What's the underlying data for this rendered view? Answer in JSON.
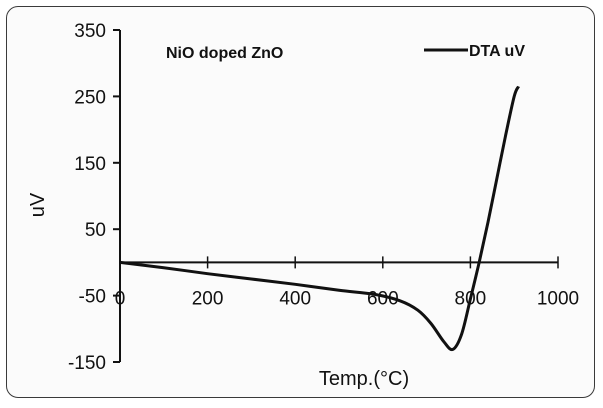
{
  "chart_data": {
    "type": "line",
    "xlabel": "Temp.(°C)",
    "ylabel": "uV",
    "xlim": [
      0,
      1000
    ],
    "ylim": [
      -150,
      350
    ],
    "xticks": [
      "0",
      "200",
      "400",
      "600",
      "800",
      "1000"
    ],
    "yticks": [
      "350",
      "250",
      "150",
      "50",
      "-50",
      "-150"
    ],
    "annotation": "NiO doped ZnO",
    "legend": {
      "position": "top-right"
    },
    "series": [
      {
        "name": "DTA uV",
        "color": "#111111",
        "x": [
          0,
          100,
          200,
          300,
          400,
          500,
          580,
          640,
          680,
          710,
          740,
          760,
          780,
          800,
          820,
          840,
          860,
          880,
          900,
          910
        ],
        "y": [
          0,
          -8,
          -17,
          -25,
          -33,
          -42,
          -48,
          -58,
          -72,
          -92,
          -120,
          -131,
          -108,
          -55,
          0,
          60,
          125,
          190,
          250,
          265
        ]
      }
    ]
  }
}
